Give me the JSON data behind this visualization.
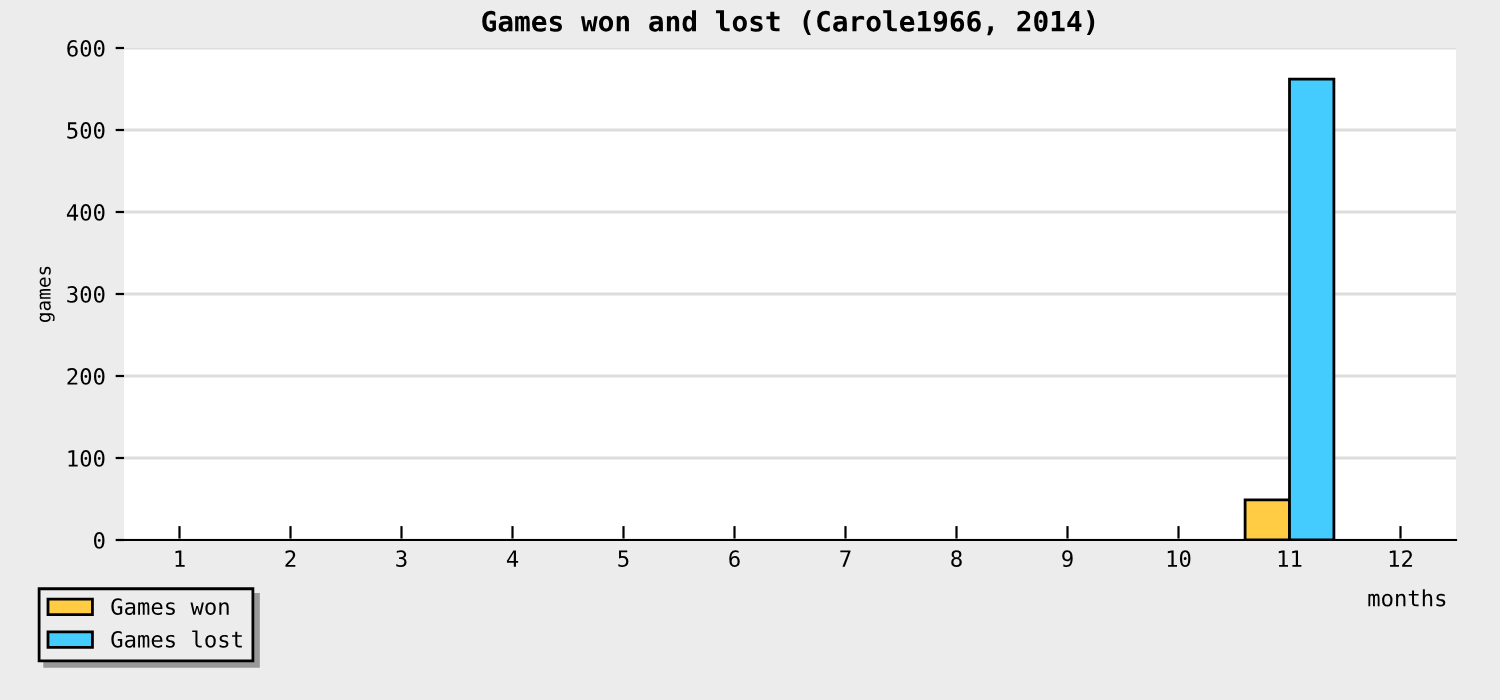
{
  "chart_data": {
    "type": "bar",
    "title": "Games won and lost (Carole1966, 2014)",
    "xlabel": "months",
    "ylabel": "games",
    "categories": [
      "1",
      "2",
      "3",
      "4",
      "5",
      "6",
      "7",
      "8",
      "9",
      "10",
      "11",
      "12"
    ],
    "series": [
      {
        "name": "Games won",
        "color": "#ffcc44",
        "values": [
          0,
          0,
          0,
          0,
          0,
          0,
          0,
          0,
          0,
          0,
          49,
          0
        ]
      },
      {
        "name": "Games lost",
        "color": "#44ccff",
        "values": [
          0,
          0,
          0,
          0,
          0,
          0,
          0,
          0,
          0,
          0,
          562,
          0
        ]
      }
    ],
    "ylim": [
      0,
      600
    ],
    "yticks": [
      0,
      100,
      200,
      300,
      400,
      500,
      600
    ],
    "grid": "y",
    "legend": "bottom left"
  }
}
